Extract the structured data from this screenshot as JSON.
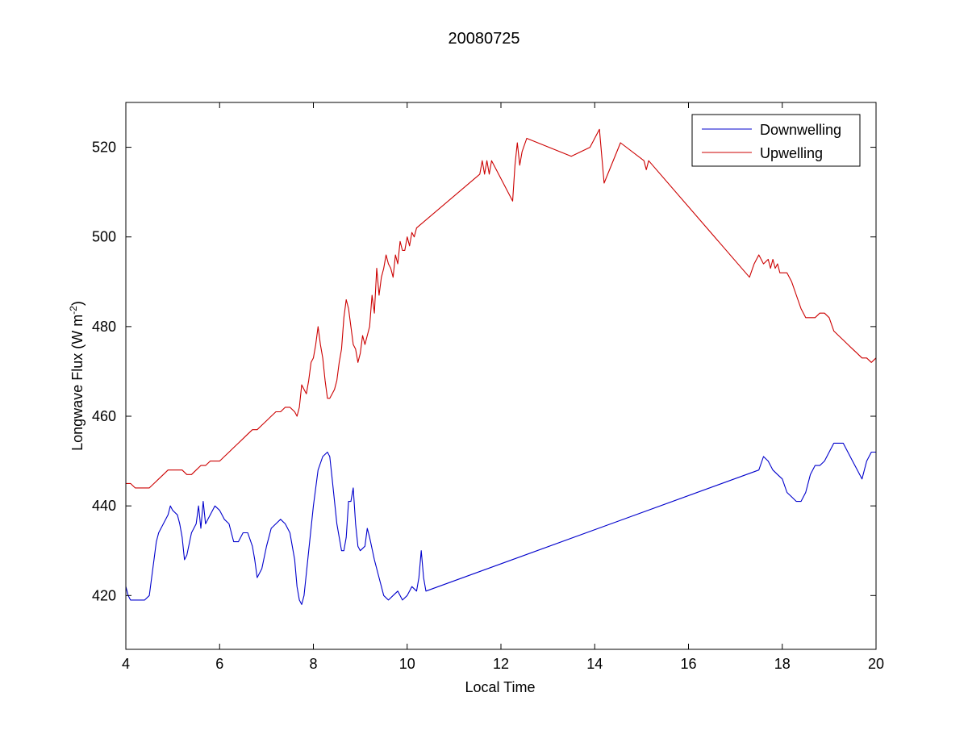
{
  "chart_data": {
    "type": "line",
    "title": "20080725",
    "xlabel": "Local Time",
    "ylabel": "Longwave Flux (W m",
    "ylabel_unit_sup": "-2",
    "ylabel_close": ")",
    "xlim": [
      4,
      20
    ],
    "ylim": [
      408,
      530
    ],
    "xticks": [
      4,
      6,
      8,
      10,
      12,
      14,
      16,
      18,
      20
    ],
    "yticks": [
      420,
      440,
      460,
      480,
      500,
      520
    ],
    "grid": false,
    "legend_position": "top-right",
    "series": [
      {
        "name": "Downwelling",
        "color": "#0000cc",
        "x": [
          4.0,
          4.05,
          4.1,
          4.2,
          4.3,
          4.4,
          4.5,
          4.55,
          4.6,
          4.65,
          4.7,
          4.8,
          4.9,
          4.95,
          5.0,
          5.1,
          5.15,
          5.2,
          5.25,
          5.3,
          5.4,
          5.5,
          5.55,
          5.6,
          5.65,
          5.7,
          5.75,
          5.8,
          5.9,
          6.0,
          6.1,
          6.2,
          6.3,
          6.4,
          6.5,
          6.6,
          6.7,
          6.75,
          6.8,
          6.9,
          7.0,
          7.1,
          7.2,
          7.3,
          7.4,
          7.5,
          7.6,
          7.65,
          7.7,
          7.75,
          7.8,
          7.9,
          8.0,
          8.1,
          8.2,
          8.3,
          8.35,
          8.4,
          8.5,
          8.6,
          8.65,
          8.7,
          8.75,
          8.8,
          8.85,
          8.9,
          8.95,
          9.0,
          9.1,
          9.15,
          9.2,
          9.3,
          9.4,
          9.5,
          9.6,
          9.7,
          9.8,
          9.9,
          10.0,
          10.1,
          10.2,
          10.25,
          10.3,
          10.35,
          10.4,
          17.5,
          17.6,
          17.7,
          17.8,
          17.9,
          18.0,
          18.1,
          18.2,
          18.3,
          18.4,
          18.5,
          18.6,
          18.7,
          18.8,
          18.9,
          19.0,
          19.1,
          19.2,
          19.3,
          19.4,
          19.5,
          19.6,
          19.7,
          19.8,
          19.9,
          20.0
        ],
        "values": [
          422,
          420,
          419,
          419,
          419,
          419,
          420,
          424,
          428,
          432,
          434,
          436,
          438,
          440,
          439,
          438,
          436,
          433,
          428,
          429,
          434,
          436,
          440,
          435,
          441,
          436,
          437,
          438,
          440,
          439,
          437,
          436,
          432,
          432,
          434,
          434,
          431,
          428,
          424,
          426,
          431,
          435,
          436,
          437,
          436,
          434,
          428,
          422,
          419,
          418,
          420,
          430,
          440,
          448,
          451,
          452,
          451,
          446,
          436,
          430,
          430,
          433,
          441,
          441,
          444,
          436,
          431,
          430,
          431,
          435,
          433,
          428,
          424,
          420,
          419,
          420,
          421,
          419,
          420,
          422,
          421,
          424,
          430,
          424,
          421,
          448,
          451,
          450,
          448,
          447,
          446,
          443,
          442,
          441,
          441,
          443,
          447,
          449,
          449,
          450,
          452,
          454,
          454,
          454,
          452,
          450,
          448,
          446,
          450,
          452,
          452
        ]
      },
      {
        "name": "Upwelling",
        "color": "#cc0000",
        "x": [
          4.0,
          4.1,
          4.2,
          4.3,
          4.4,
          4.5,
          4.6,
          4.7,
          4.8,
          4.9,
          5.0,
          5.1,
          5.2,
          5.3,
          5.4,
          5.5,
          5.6,
          5.7,
          5.8,
          5.9,
          6.0,
          6.1,
          6.2,
          6.3,
          6.4,
          6.5,
          6.6,
          6.7,
          6.8,
          6.9,
          7.0,
          7.1,
          7.2,
          7.3,
          7.4,
          7.5,
          7.6,
          7.65,
          7.7,
          7.75,
          7.8,
          7.85,
          7.9,
          7.95,
          8.0,
          8.05,
          8.1,
          8.15,
          8.2,
          8.25,
          8.3,
          8.35,
          8.4,
          8.45,
          8.5,
          8.55,
          8.6,
          8.65,
          8.7,
          8.75,
          8.8,
          8.85,
          8.9,
          8.95,
          9.0,
          9.05,
          9.1,
          9.15,
          9.2,
          9.25,
          9.3,
          9.35,
          9.4,
          9.45,
          9.5,
          9.55,
          9.6,
          9.65,
          9.7,
          9.75,
          9.8,
          9.85,
          9.9,
          9.95,
          10.0,
          10.05,
          10.1,
          10.15,
          10.2,
          11.55,
          11.6,
          11.65,
          11.7,
          11.75,
          11.8,
          11.85,
          12.25,
          12.3,
          12.35,
          12.4,
          12.45,
          12.55,
          13.5,
          13.9,
          14.1,
          14.2,
          14.55,
          15.05,
          15.1,
          15.15,
          17.3,
          17.4,
          17.5,
          17.6,
          17.7,
          17.75,
          17.8,
          17.85,
          17.9,
          17.95,
          18.0,
          18.1,
          18.2,
          18.3,
          18.4,
          18.5,
          18.6,
          18.7,
          18.8,
          18.9,
          19.0,
          19.1,
          19.2,
          19.3,
          19.4,
          19.5,
          19.6,
          19.7,
          19.8,
          19.9,
          20.0
        ],
        "values": [
          445,
          445,
          444,
          444,
          444,
          444,
          445,
          446,
          447,
          448,
          448,
          448,
          448,
          447,
          447,
          448,
          449,
          449,
          450,
          450,
          450,
          451,
          452,
          453,
          454,
          455,
          456,
          457,
          457,
          458,
          459,
          460,
          461,
          461,
          462,
          462,
          461,
          460,
          462,
          467,
          466,
          465,
          468,
          472,
          473,
          476,
          480,
          476,
          473,
          468,
          464,
          464,
          465,
          466,
          468,
          472,
          475,
          482,
          486,
          484,
          480,
          476,
          475,
          472,
          474,
          478,
          476,
          478,
          480,
          487,
          483,
          493,
          487,
          491,
          493,
          496,
          494,
          493,
          491,
          496,
          494,
          499,
          497,
          497,
          500,
          498,
          501,
          500,
          502,
          514,
          517,
          514,
          517,
          514,
          517,
          516,
          508,
          516,
          521,
          516,
          519,
          522,
          518,
          520,
          524,
          512,
          521,
          517,
          515,
          517,
          491,
          494,
          496,
          494,
          495,
          493,
          495,
          493,
          494,
          492,
          492,
          492,
          490,
          487,
          484,
          482,
          482,
          482,
          483,
          483,
          482,
          479,
          478,
          477,
          476,
          475,
          474,
          473,
          473,
          472,
          473
        ]
      }
    ]
  }
}
